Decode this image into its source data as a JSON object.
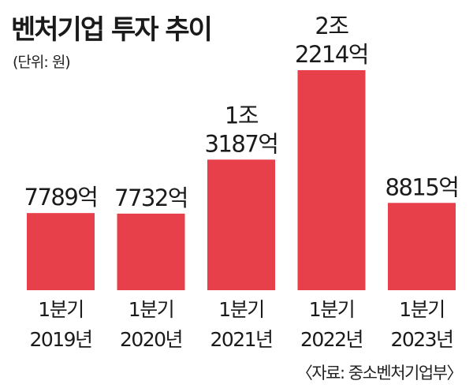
{
  "chart_data": {
    "type": "bar",
    "title": "벤처기업 투자 추이",
    "unit_label": "(단위: 원)",
    "source": "〈자료: 중소벤처기업부〉",
    "categories": [
      [
        "1분기",
        "2019년"
      ],
      [
        "1분기",
        "2020년"
      ],
      [
        "1분기",
        "2021년"
      ],
      [
        "1분기",
        "2022년"
      ],
      [
        "1분기",
        "2023년"
      ]
    ],
    "values": [
      7789,
      7732,
      13187,
      22214,
      8815
    ],
    "value_labels": [
      [
        "7789억"
      ],
      [
        "7732억"
      ],
      [
        "1조",
        "3187억"
      ],
      [
        "2조",
        "2214억"
      ],
      [
        "8815억"
      ]
    ],
    "bar_color": "#e8404a",
    "ylim": [
      0,
      22214
    ],
    "grid": false
  }
}
